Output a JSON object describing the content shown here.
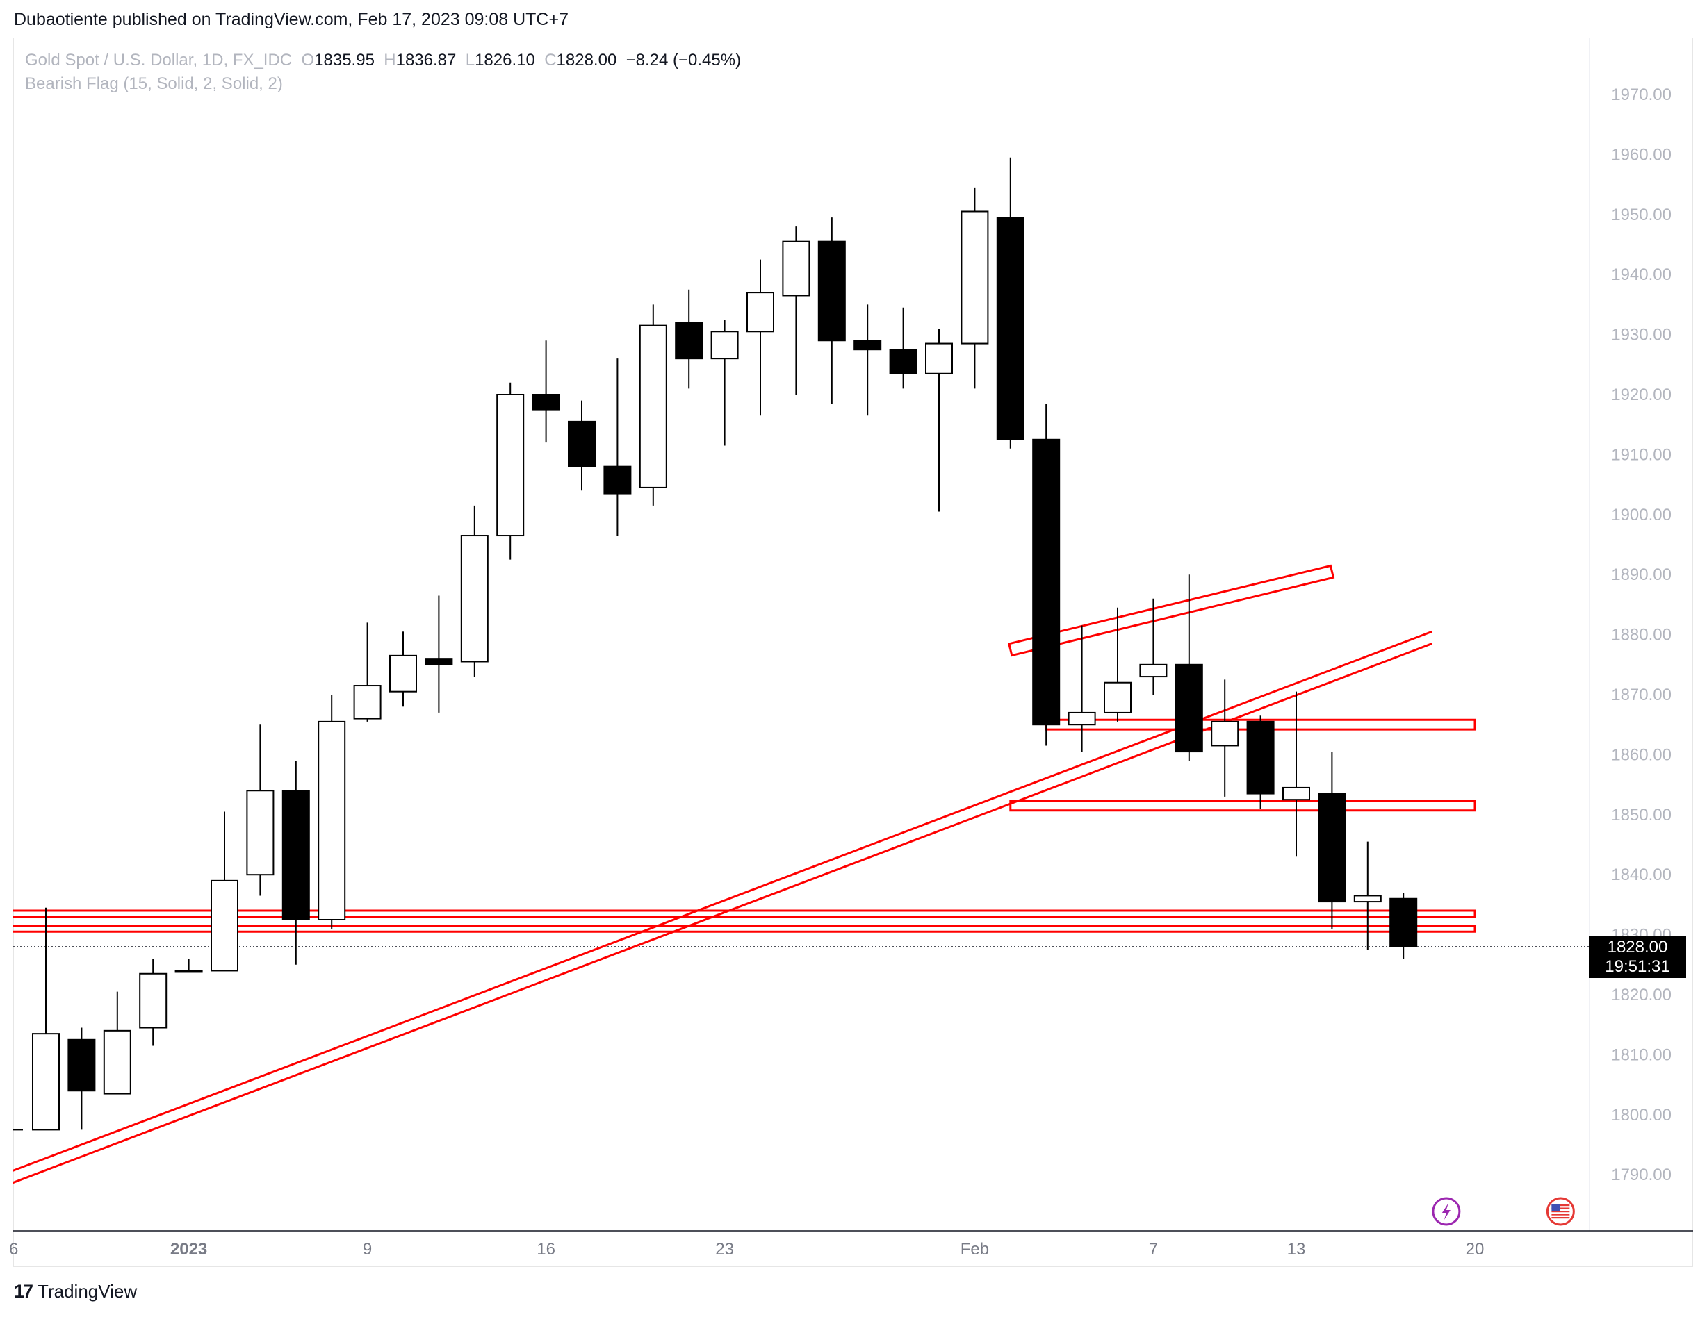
{
  "header": {
    "publish_text": "Dubaotiente published on TradingView.com, Feb 17, 2023 09:08 UTC+7"
  },
  "legend": {
    "symbol": "Gold Spot / U.S. Dollar, 1D, FX_IDC",
    "o_label": "O",
    "o_value": "1835.95",
    "h_label": "H",
    "h_value": "1836.87",
    "l_label": "L",
    "l_value": "1826.10",
    "c_label": "C",
    "c_value": "1828.00",
    "change": "−8.24 (−0.45%)",
    "indicator": "Bearish Flag (15, Solid, 2, Solid, 2)"
  },
  "price_label": {
    "price": "1828.00",
    "countdown": "19:51:31"
  },
  "footer": {
    "brand": "TradingView",
    "brand_mark": "17"
  },
  "colors": {
    "up_fill": "#ffffff",
    "down_fill": "#000000",
    "wick": "#000000",
    "pattern": "#ff0000",
    "axis_text": "#b2b5be",
    "time_text": "#787b86"
  },
  "icons": {
    "flash": "lightning-icon",
    "flag": "us-flag-icon"
  },
  "chart_data": {
    "type": "candlestick",
    "y_axis": {
      "ticks": [
        "1790.00",
        "1800.00",
        "1810.00",
        "1820.00",
        "1830.00",
        "1840.00",
        "1850.00",
        "1860.00",
        "1870.00",
        "1880.00",
        "1890.00",
        "1900.00",
        "1910.00",
        "1920.00",
        "1930.00",
        "1940.00",
        "1950.00",
        "1960.00",
        "1970.00"
      ]
    },
    "x_axis": {
      "ticks": [
        {
          "label": "6",
          "slot": -0.9
        },
        {
          "label": "2023",
          "slot": 4,
          "bold": true
        },
        {
          "label": "9",
          "slot": 9
        },
        {
          "label": "16",
          "slot": 14
        },
        {
          "label": "23",
          "slot": 19
        },
        {
          "label": "Feb",
          "slot": 26
        },
        {
          "label": "7",
          "slot": 31
        },
        {
          "label": "13",
          "slot": 35
        },
        {
          "label": "20",
          "slot": 40
        }
      ]
    },
    "candles": [
      {
        "o": 1797.5,
        "h": 1834.5,
        "l": 1797.5,
        "c": 1813.5
      },
      {
        "o": 1812.5,
        "h": 1814.5,
        "l": 1797.5,
        "c": 1804.0
      },
      {
        "o": 1803.5,
        "h": 1820.5,
        "l": 1803.5,
        "c": 1814.0
      },
      {
        "o": 1814.5,
        "h": 1826.0,
        "l": 1811.5,
        "c": 1823.5
      },
      {
        "o": 1824.0,
        "h": 1826.0,
        "l": 1824.0,
        "c": 1824.0
      },
      {
        "o": 1824.0,
        "h": 1850.5,
        "l": 1824.0,
        "c": 1839.0
      },
      {
        "o": 1840.0,
        "h": 1865.0,
        "l": 1836.5,
        "c": 1854.0
      },
      {
        "o": 1854.0,
        "h": 1859.0,
        "l": 1825.0,
        "c": 1832.5
      },
      {
        "o": 1832.5,
        "h": 1870.0,
        "l": 1831.0,
        "c": 1865.5
      },
      {
        "o": 1866.0,
        "h": 1882.0,
        "l": 1865.5,
        "c": 1871.5
      },
      {
        "o": 1870.5,
        "h": 1880.5,
        "l": 1868.0,
        "c": 1876.5
      },
      {
        "o": 1876.0,
        "h": 1886.5,
        "l": 1867.0,
        "c": 1875.0
      },
      {
        "o": 1875.5,
        "h": 1901.5,
        "l": 1873.0,
        "c": 1896.5
      },
      {
        "o": 1896.5,
        "h": 1922.0,
        "l": 1892.5,
        "c": 1920.0
      },
      {
        "o": 1920.0,
        "h": 1929.0,
        "l": 1912.0,
        "c": 1917.5
      },
      {
        "o": 1915.5,
        "h": 1919.0,
        "l": 1904.0,
        "c": 1908.0
      },
      {
        "o": 1908.0,
        "h": 1926.0,
        "l": 1896.5,
        "c": 1903.5
      },
      {
        "o": 1904.5,
        "h": 1935.0,
        "l": 1901.5,
        "c": 1931.5
      },
      {
        "o": 1932.0,
        "h": 1937.5,
        "l": 1921.0,
        "c": 1926.0
      },
      {
        "o": 1926.0,
        "h": 1932.5,
        "l": 1911.5,
        "c": 1930.5
      },
      {
        "o": 1930.5,
        "h": 1942.5,
        "l": 1916.5,
        "c": 1937.0
      },
      {
        "o": 1936.5,
        "h": 1948.0,
        "l": 1920.0,
        "c": 1945.5
      },
      {
        "o": 1945.5,
        "h": 1949.5,
        "l": 1918.5,
        "c": 1929.0
      },
      {
        "o": 1929.0,
        "h": 1935.0,
        "l": 1916.5,
        "c": 1927.5
      },
      {
        "o": 1927.5,
        "h": 1934.5,
        "l": 1921.0,
        "c": 1923.5
      },
      {
        "o": 1923.5,
        "h": 1931.0,
        "l": 1900.5,
        "c": 1928.5
      },
      {
        "o": 1928.5,
        "h": 1954.5,
        "l": 1921.0,
        "c": 1950.5
      },
      {
        "o": 1949.5,
        "h": 1959.5,
        "l": 1911.0,
        "c": 1912.5
      },
      {
        "o": 1912.5,
        "h": 1918.5,
        "l": 1861.5,
        "c": 1865.0
      },
      {
        "o": 1865.0,
        "h": 1881.5,
        "l": 1860.5,
        "c": 1867.0
      },
      {
        "o": 1867.0,
        "h": 1884.5,
        "l": 1865.5,
        "c": 1872.0
      },
      {
        "o": 1873.0,
        "h": 1886.0,
        "l": 1870.0,
        "c": 1875.0
      },
      {
        "o": 1875.0,
        "h": 1890.0,
        "l": 1859.0,
        "c": 1860.5
      },
      {
        "o": 1861.5,
        "h": 1872.5,
        "l": 1853.0,
        "c": 1865.5
      },
      {
        "o": 1865.5,
        "h": 1866.5,
        "l": 1851.0,
        "c": 1853.5
      },
      {
        "o": 1852.5,
        "h": 1870.5,
        "l": 1843.0,
        "c": 1854.5
      },
      {
        "o": 1853.5,
        "h": 1860.5,
        "l": 1831.0,
        "c": 1835.5
      },
      {
        "o": 1835.5,
        "h": 1845.5,
        "l": 1827.5,
        "c": 1836.5
      },
      {
        "o": 1836.0,
        "h": 1837.0,
        "l": 1826.0,
        "c": 1828.0
      }
    ],
    "pattern_lines": [
      {
        "from": [
          -1,
          1790.5
        ],
        "to": [
          38.8,
          1880.5
        ]
      },
      {
        "from": [
          -1,
          1788.5
        ],
        "to": [
          38.8,
          1878.5
        ]
      }
    ],
    "pattern_boxes": [
      {
        "from": [
          -1,
          1833.5
        ],
        "to": [
          40,
          1833.5
        ],
        "thickness": 1.0
      },
      {
        "from": [
          -1,
          1831.0
        ],
        "to": [
          40,
          1831.0
        ],
        "thickness": 1.0
      },
      {
        "from": [
          27.0,
          1877.5
        ],
        "to": [
          36.0,
          1890.5
        ],
        "thickness": 2.0
      },
      {
        "from": [
          28.0,
          1865.0
        ],
        "to": [
          40.0,
          1865.0
        ],
        "thickness": 1.6
      },
      {
        "from": [
          27.0,
          1851.5
        ],
        "to": [
          40.0,
          1851.5
        ],
        "thickness": 1.6
      }
    ]
  }
}
